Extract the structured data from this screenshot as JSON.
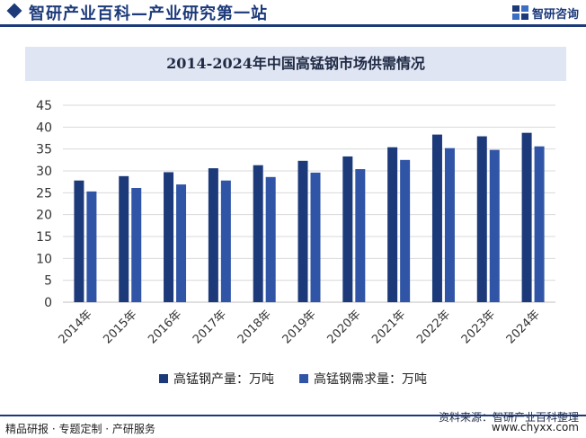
{
  "header": {
    "site_title": "智研产业百科—产业研究第一站",
    "logo_text": "智研咨询"
  },
  "footer": {
    "source": "资料来源：智研产业百科整理",
    "left": "精品研报 · 专题定制 · 产研服务",
    "right": "www.chyxx.com"
  },
  "colors": {
    "series1": "#1c3a7a",
    "series2": "#3155a6"
  },
  "chart_data": {
    "type": "bar",
    "title": "2014-2024年中国高锰钢市场供需情况",
    "categories": [
      "2014年",
      "2015年",
      "2016年",
      "2017年",
      "2018年",
      "2019年",
      "2020年",
      "2021年",
      "2022年",
      "2023年",
      "2024年"
    ],
    "series": [
      {
        "name": "高锰钢产量：万吨",
        "values": [
          27.8,
          28.8,
          29.7,
          30.6,
          31.3,
          32.3,
          33.3,
          35.4,
          38.3,
          37.9,
          38.7
        ]
      },
      {
        "name": "高锰钢需求量：万吨",
        "values": [
          25.3,
          26.1,
          26.9,
          27.8,
          28.6,
          29.6,
          30.4,
          32.5,
          35.2,
          34.8,
          35.6
        ]
      }
    ],
    "yticks": [
      "0",
      "5",
      "10",
      "15",
      "20",
      "25",
      "30",
      "35",
      "40",
      "45"
    ],
    "ylim": [
      0,
      45
    ],
    "grid": true,
    "legend_position": "bottom"
  }
}
